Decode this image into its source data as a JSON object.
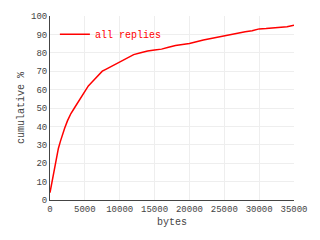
{
  "chart_data": {
    "type": "line",
    "xlabel": "bytes",
    "ylabel": "cumulative %",
    "x": [
      0,
      100,
      200,
      400,
      600,
      800,
      1000,
      1200,
      1500,
      1800,
      2100,
      2500,
      3000,
      3500,
      4000,
      4500,
      5000,
      5500,
      6000,
      6500,
      7000,
      7500,
      8000,
      8500,
      9000,
      9500,
      10000,
      11000,
      12000,
      13000,
      14000,
      15000,
      16000,
      17000,
      18000,
      19000,
      20000,
      22000,
      24000,
      25000,
      26000,
      27000,
      28000,
      29000,
      30000,
      31000,
      32000,
      33000,
      34000,
      35000
    ],
    "series": [
      {
        "name": "all replies",
        "color": "#ff0000",
        "values": [
          4,
          6,
          8,
          13,
          17,
          21,
          25,
          28,
          32,
          36,
          39,
          43,
          47,
          50,
          53,
          56,
          59,
          62,
          64,
          66,
          68,
          70,
          71,
          72,
          73,
          74,
          75,
          77,
          79,
          80,
          81,
          81.5,
          82,
          83,
          84,
          84.5,
          85,
          87,
          88.5,
          89.5,
          90,
          91,
          91.5,
          92,
          93,
          93.2,
          93.5,
          93.8,
          94.2,
          95
        ]
      }
    ],
    "xlim": [
      0,
      35000
    ],
    "ylim": [
      0,
      100
    ],
    "xticks": [
      0,
      5000,
      10000,
      15000,
      20000,
      25000,
      30000,
      35000
    ],
    "yticks": [
      0,
      10,
      20,
      30,
      40,
      50,
      60,
      70,
      80,
      90,
      100
    ],
    "grid": true,
    "legend": "upper left"
  }
}
